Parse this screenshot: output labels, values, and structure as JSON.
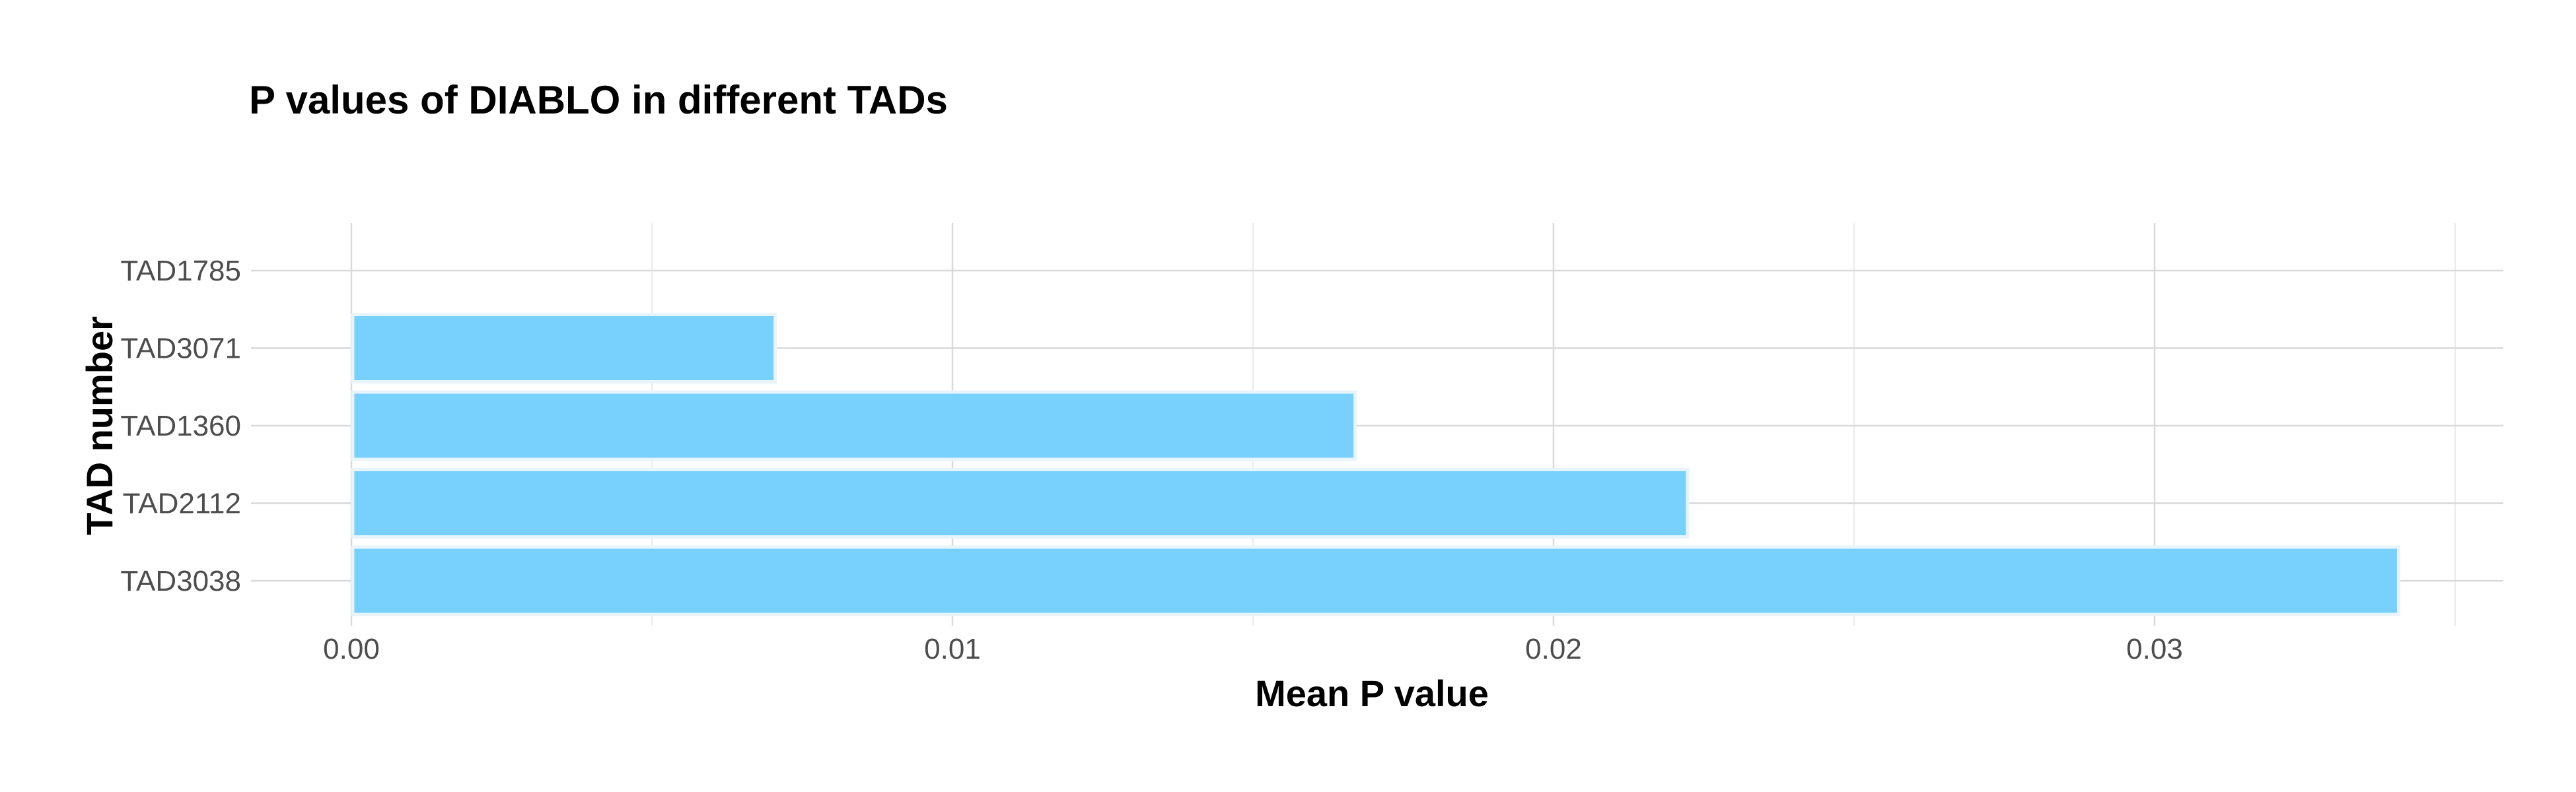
{
  "chart_data": {
    "type": "bar",
    "orientation": "horizontal",
    "title": "P values of DIABLO in different TADs",
    "xlabel": "Mean P value",
    "ylabel": "TAD number",
    "categories": [
      "TAD1785",
      "TAD3071",
      "TAD1360",
      "TAD2112",
      "TAD3038"
    ],
    "values": [
      0,
      0.00705,
      0.0167,
      0.02223,
      0.03406
    ],
    "xlim": [
      0,
      0.0358
    ],
    "x_ticks": [
      0,
      0.01,
      0.02,
      0.03
    ],
    "x_tick_labels": [
      "0.00",
      "0.01",
      "0.02",
      "0.03"
    ],
    "grid": true,
    "legend": "none",
    "bar_color": "#74cefc",
    "bar_outline_color": "#e8f4fc"
  }
}
